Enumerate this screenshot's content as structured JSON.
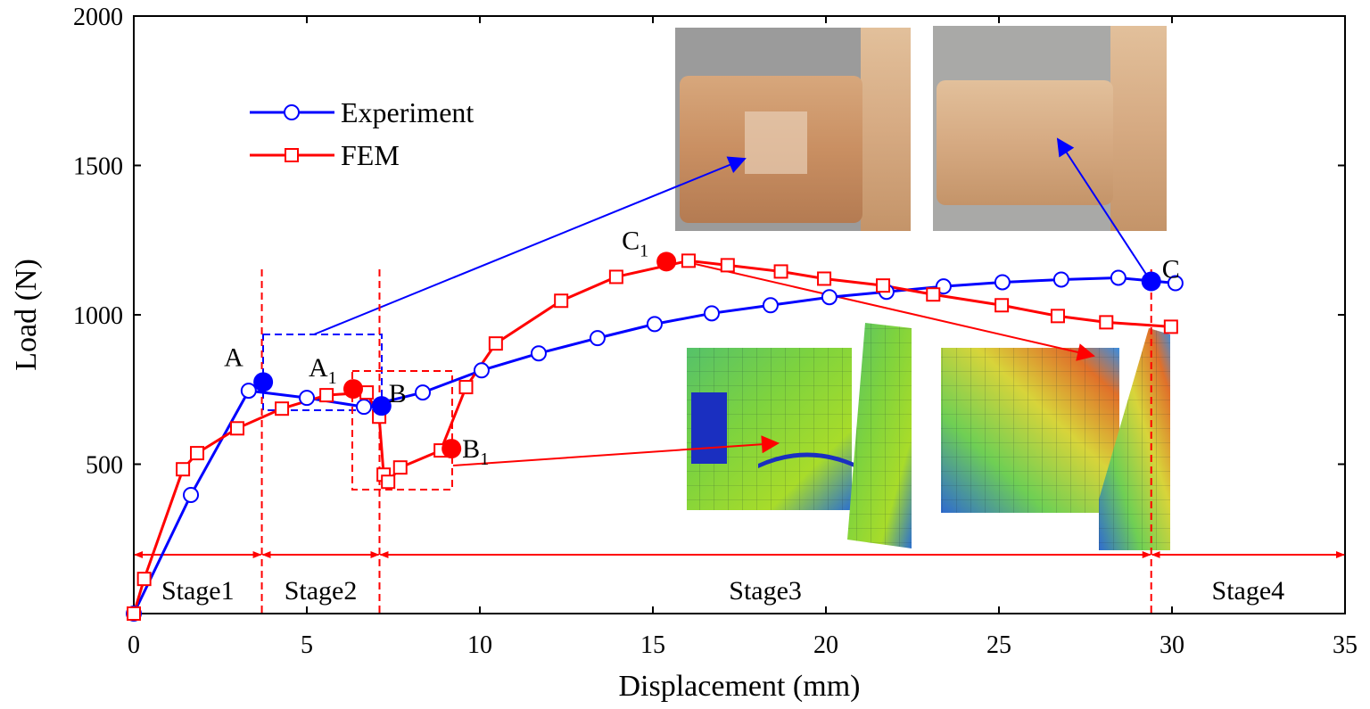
{
  "chart_data": {
    "type": "line",
    "xlabel": "Displacement (mm)",
    "ylabel": "Load (N)",
    "xlim": [
      0,
      35
    ],
    "ylim": [
      0,
      2000
    ],
    "xticks": [
      0,
      5,
      10,
      15,
      20,
      25,
      30,
      35
    ],
    "yticks": [
      500,
      1000,
      1500,
      2000
    ],
    "legend": "upper left",
    "series": [
      {
        "name": "Experiment",
        "color": "#0000ff",
        "marker": "circle",
        "x": [
          0,
          1.65,
          3.32,
          5.0,
          6.65,
          8.35,
          10.05,
          11.7,
          13.4,
          15.05,
          16.7,
          18.4,
          20.1,
          21.75,
          23.4,
          25.1,
          26.8,
          28.45,
          30.1
        ],
        "values": [
          0,
          397,
          746,
          722,
          692,
          740,
          814,
          871,
          922,
          969,
          1005,
          1032,
          1059,
          1077,
          1095,
          1109,
          1118,
          1124,
          1106
        ]
      },
      {
        "name": "FEM",
        "color": "#ff0000",
        "marker": "square",
        "x": [
          0,
          0.3,
          1.42,
          1.83,
          2.99,
          4.28,
          5.57,
          6.73,
          7.09,
          7.22,
          7.35,
          7.7,
          8.87,
          9.6,
          10.46,
          12.35,
          13.94,
          16.03,
          17.16,
          18.7,
          19.95,
          21.65,
          23.1,
          25.08,
          26.7,
          28.1,
          29.97
        ],
        "values": [
          0,
          116,
          483,
          537,
          620,
          686,
          731,
          740,
          659,
          465,
          441,
          489,
          546,
          758,
          904,
          1047,
          1127,
          1181,
          1166,
          1145,
          1121,
          1098,
          1068,
          1032,
          996,
          975,
          960
        ]
      }
    ],
    "key_points": [
      {
        "label": "A",
        "series": 0,
        "x": 3.74,
        "y": 775
      },
      {
        "label": "B",
        "series": 0,
        "x": 7.16,
        "y": 695
      },
      {
        "label": "C",
        "series": 0,
        "x": 29.4,
        "y": 1112
      },
      {
        "label": "A",
        "subscript": "1",
        "series": 1,
        "x": 6.34,
        "y": 752
      },
      {
        "label": "B",
        "subscript": "1",
        "series": 1,
        "x": 9.18,
        "y": 552
      },
      {
        "label": "C",
        "subscript": "1",
        "series": 1,
        "x": 15.39,
        "y": 1178
      }
    ],
    "stage_boundaries": [
      3.7,
      7.1,
      29.4
    ],
    "stage_labels": [
      "Stage1",
      "Stage2",
      "Stage3",
      "Stage4"
    ]
  }
}
